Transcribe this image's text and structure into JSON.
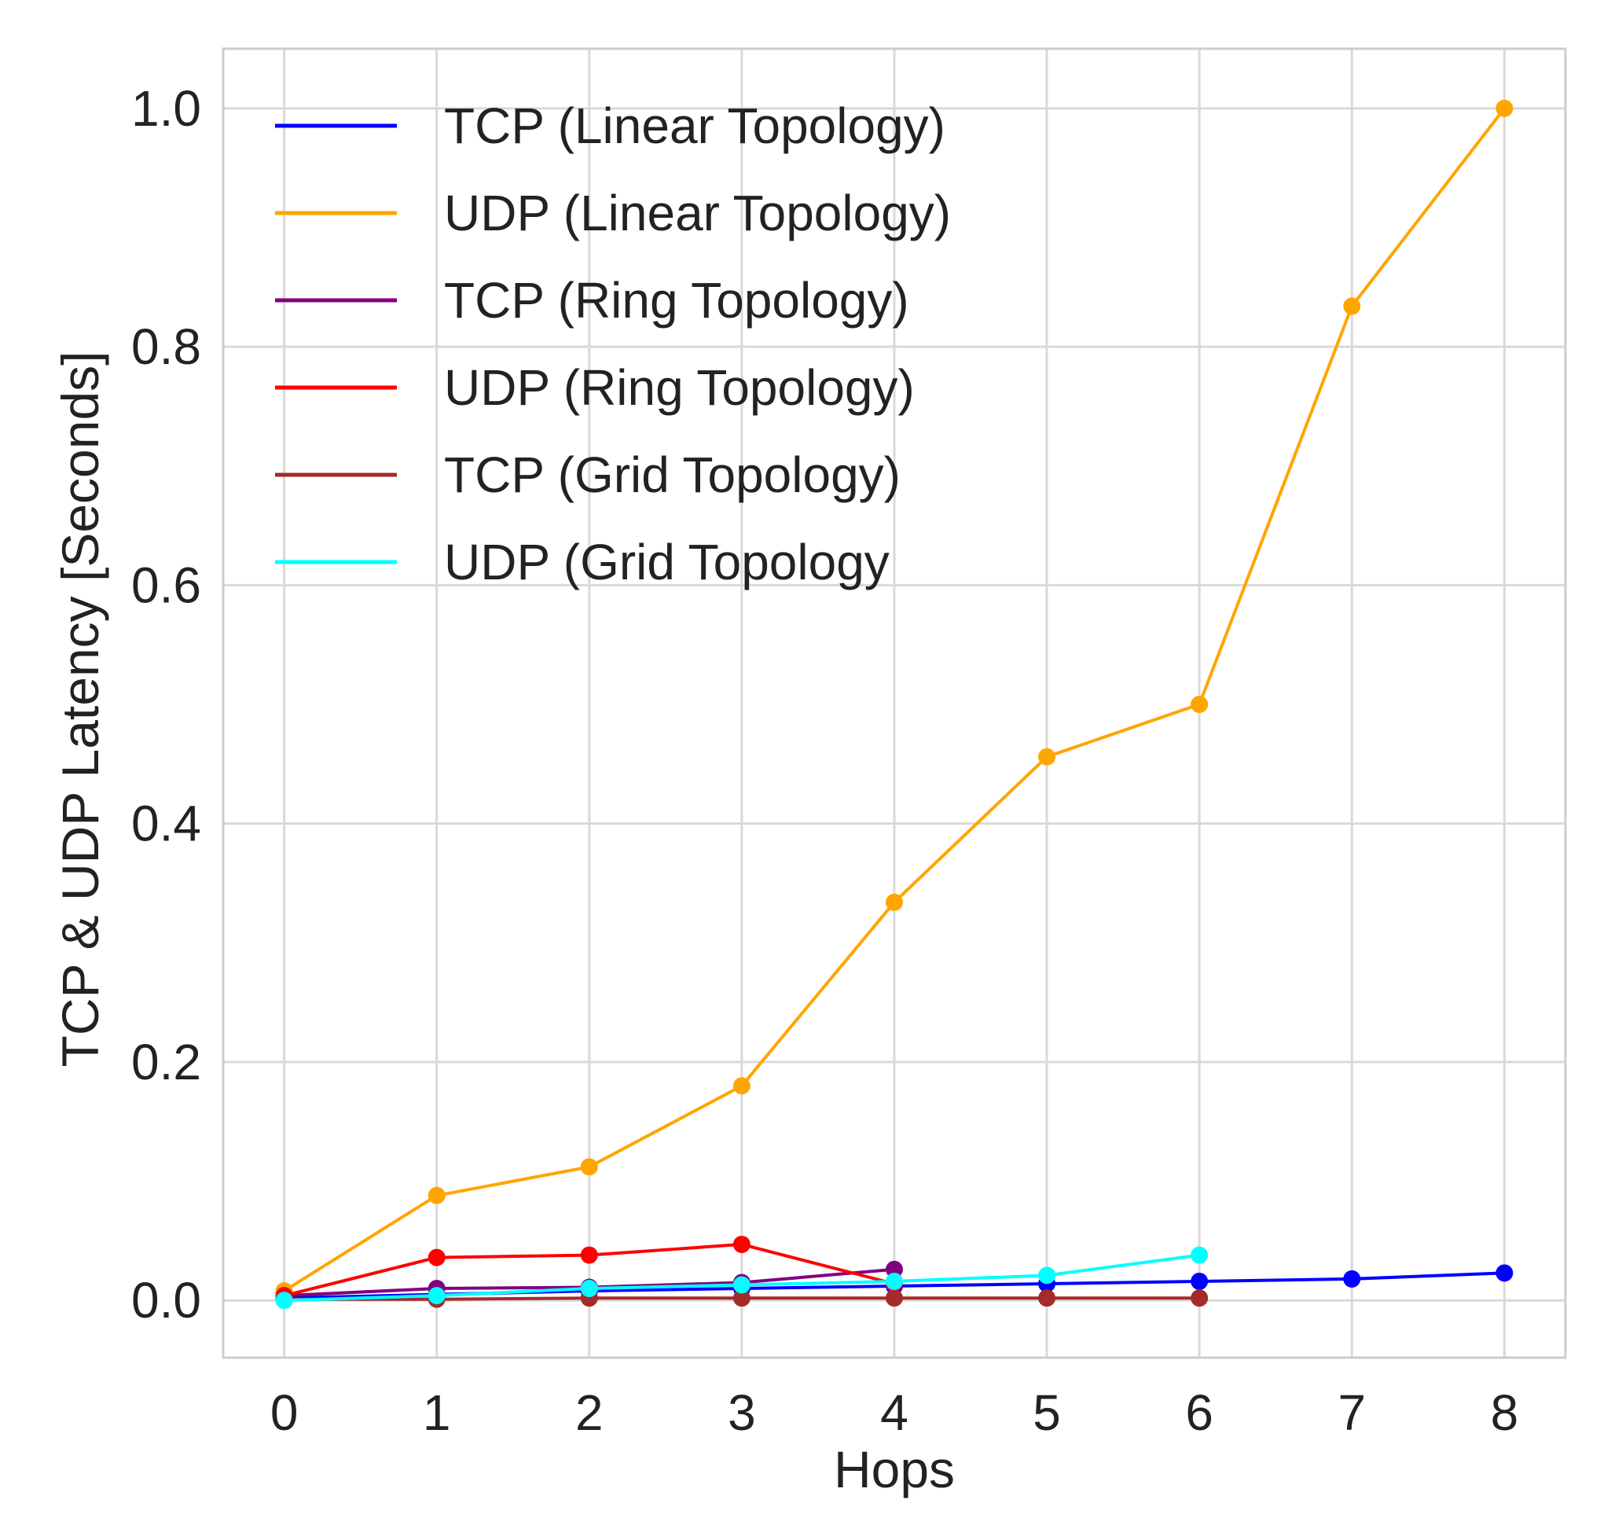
{
  "chart_data": {
    "type": "line",
    "title": "",
    "xlabel": "Hops",
    "ylabel": "TCP & UDP Latency  [Seconds]",
    "xlim": [
      -0.4,
      8.4
    ],
    "ylim": [
      -0.048,
      1.05
    ],
    "xticks": [
      0,
      1,
      2,
      3,
      4,
      5,
      6,
      7,
      8
    ],
    "yticks": [
      0.0,
      0.2,
      0.4,
      0.6,
      0.8,
      1.0
    ],
    "ytick_labels": [
      "0.0",
      "0.2",
      "0.4",
      "0.6",
      "0.8",
      "1.0"
    ],
    "grid": true,
    "legend_position": "top-left",
    "series": [
      {
        "name": "TCP (Linear Topology)",
        "color": "#0000ff",
        "x": [
          0,
          1,
          2,
          3,
          4,
          5,
          6,
          7,
          8
        ],
        "y": [
          0.002,
          0.005,
          0.008,
          0.01,
          0.012,
          0.014,
          0.016,
          0.018,
          0.023
        ]
      },
      {
        "name": "UDP (Linear Topology)",
        "color": "#ffa500",
        "x": [
          0,
          1,
          2,
          3,
          4,
          5,
          6,
          7,
          8
        ],
        "y": [
          0.008,
          0.088,
          0.112,
          0.18,
          0.334,
          0.456,
          0.5,
          0.834,
          1.0
        ]
      },
      {
        "name": "TCP (Ring Topology)",
        "color": "#800080",
        "x": [
          0,
          1,
          2,
          3,
          4
        ],
        "y": [
          0.004,
          0.01,
          0.011,
          0.015,
          0.026
        ]
      },
      {
        "name": "UDP (Ring Topology)",
        "color": "#ff0000",
        "x": [
          0,
          1,
          2,
          3,
          4
        ],
        "y": [
          0.004,
          0.036,
          0.038,
          0.047,
          0.014
        ]
      },
      {
        "name": "TCP (Grid Topology)",
        "color": "#a52a2a",
        "x": [
          0,
          1,
          2,
          3,
          4,
          5,
          6
        ],
        "y": [
          0.001,
          0.001,
          0.002,
          0.002,
          0.002,
          0.002,
          0.002
        ]
      },
      {
        "name": "UDP (Grid Topology",
        "color": "#00ffff",
        "x": [
          0,
          1,
          2,
          3,
          4,
          5,
          6
        ],
        "y": [
          0.0,
          0.004,
          0.01,
          0.013,
          0.016,
          0.021,
          0.038
        ]
      }
    ]
  }
}
